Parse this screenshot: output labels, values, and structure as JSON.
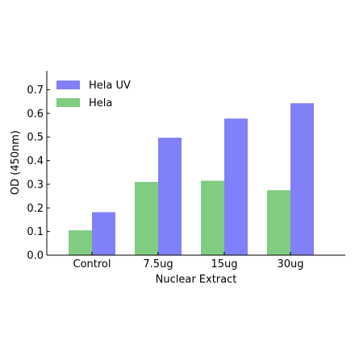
{
  "chart_data": {
    "type": "bar",
    "categories": [
      "Control",
      "7.5ug",
      "15ug",
      "30ug"
    ],
    "series": [
      {
        "name": "Hela",
        "values": [
          0.105,
          0.31,
          0.315,
          0.275
        ],
        "color": "#80cc80"
      },
      {
        "name": "Hela UV",
        "values": [
          0.182,
          0.497,
          0.578,
          0.643
        ],
        "color": "#8080f8"
      }
    ],
    "xlabel": "Nuclear Extract",
    "ylabel": "OD (450nm)",
    "ylim": [
      0,
      0.78
    ],
    "yticks": [
      "0.0",
      "0.1",
      "0.2",
      "0.3",
      "0.4",
      "0.5",
      "0.6",
      "0.7"
    ],
    "legend_order": [
      "Hela UV",
      "Hela"
    ],
    "legend_position": "top-left",
    "grid": false
  }
}
